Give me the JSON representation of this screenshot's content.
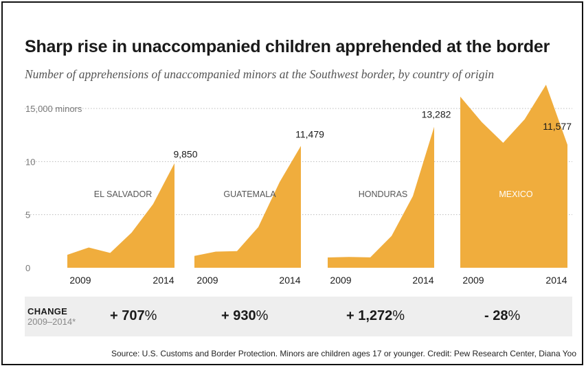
{
  "title": "Sharp rise in unaccompanied children apprehended at the border",
  "subtitle": "Number of apprehensions of unaccompanied minors at the Southwest border, by country of origin",
  "change": {
    "label": "CHANGE",
    "period": "2009–2014*",
    "values": [
      {
        "number": "+ 707",
        "suffix": "%"
      },
      {
        "number": "+ 930",
        "suffix": "%"
      },
      {
        "number": "+ 1,272",
        "suffix": "%"
      },
      {
        "number": "- 28",
        "suffix": "%"
      }
    ]
  },
  "source": "Source: U.S. Customs and Border Protection. Minors are children ages 17 or younger. Credit: Pew Research Center, Diana Yoo",
  "colors": {
    "area": "#f0ad3d",
    "grid": "#bbbbbb",
    "band": "#eeeeee",
    "panel_label_dark": "#555555",
    "panel_label_light": "#ffffff"
  },
  "chart_data": {
    "type": "area",
    "years": [
      2009,
      2010,
      2011,
      2012,
      2013,
      2014
    ],
    "y_ticks": [
      {
        "value": 0,
        "label": "0"
      },
      {
        "value": 5000,
        "label": "5"
      },
      {
        "value": 10000,
        "label": "10"
      },
      {
        "value": 15000,
        "label": "15,000 minors"
      }
    ],
    "ylim": [
      0,
      15000
    ],
    "grid": true,
    "series": [
      {
        "name": "EL SALVADOR",
        "values": [
          1221,
          1910,
          1394,
          3314,
          5990,
          9850
        ],
        "end_label": "9,850",
        "x_labels": [
          "2009",
          "2014"
        ]
      },
      {
        "name": "GUATEMALA",
        "values": [
          1115,
          1517,
          1565,
          3835,
          8068,
          11479
        ],
        "end_label": "11,479",
        "x_labels": [
          "2009",
          "2014"
        ]
      },
      {
        "name": "HONDURAS",
        "values": [
          968,
          1017,
          974,
          2997,
          6747,
          13282
        ],
        "end_label": "13,282",
        "x_labels": [
          "2009",
          "2014"
        ]
      },
      {
        "name": "MEXICO",
        "values": [
          16114,
          13724,
          11768,
          13974,
          17240,
          11577
        ],
        "end_label": "11,577",
        "x_labels": [
          "2009",
          "2014"
        ]
      }
    ]
  }
}
